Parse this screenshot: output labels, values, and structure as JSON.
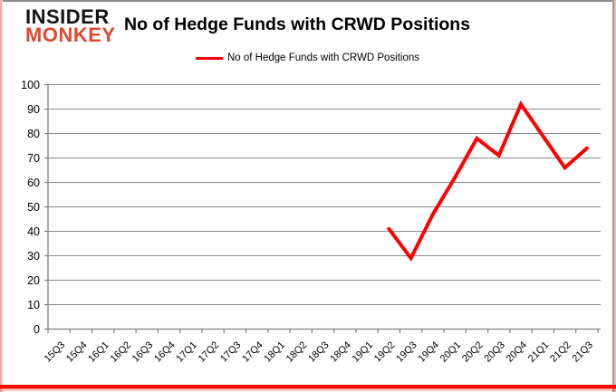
{
  "logo": {
    "line1": "INSIDER",
    "line2": "MONKEY"
  },
  "header": {
    "title": "No of Hedge Funds with CRWD Positions"
  },
  "legend": {
    "label": "No of Hedge Funds with CRWD Positions"
  },
  "colors": {
    "series_red": "#ff0000",
    "gridline_gray": "#898989",
    "axis_gray": "#7f7f7f",
    "logo_black": "#151515",
    "logo_red": "#e0492f",
    "frame_bottom_red": "#ff0800",
    "frame_pink": "#f5beb6",
    "frame_gray": "#8e8e8e",
    "text_black": "#000000"
  },
  "chart_data": {
    "type": "line",
    "title": "No of Hedge Funds with CRWD Positions",
    "xlabel": "",
    "ylabel": "",
    "ylim": [
      0,
      100
    ],
    "ytick_step": 10,
    "grid": true,
    "legend_position": "top",
    "categories": [
      "15Q3",
      "15Q4",
      "16Q1",
      "16Q2",
      "16Q3",
      "16Q4",
      "17Q1",
      "17Q2",
      "17Q3",
      "17Q4",
      "18Q1",
      "18Q2",
      "18Q3",
      "18Q4",
      "19Q1",
      "19Q2",
      "19Q3",
      "19Q4",
      "20Q1",
      "20Q2",
      "20Q3",
      "20Q4",
      "21Q1",
      "21Q2",
      "21Q3"
    ],
    "series": [
      {
        "name": "No of Hedge Funds with CRWD Positions",
        "color": "#ff0000",
        "values": [
          null,
          null,
          null,
          null,
          null,
          null,
          null,
          null,
          null,
          null,
          null,
          null,
          null,
          null,
          null,
          41,
          29,
          47,
          62,
          78,
          71,
          92,
          79,
          66,
          74
        ]
      }
    ]
  }
}
